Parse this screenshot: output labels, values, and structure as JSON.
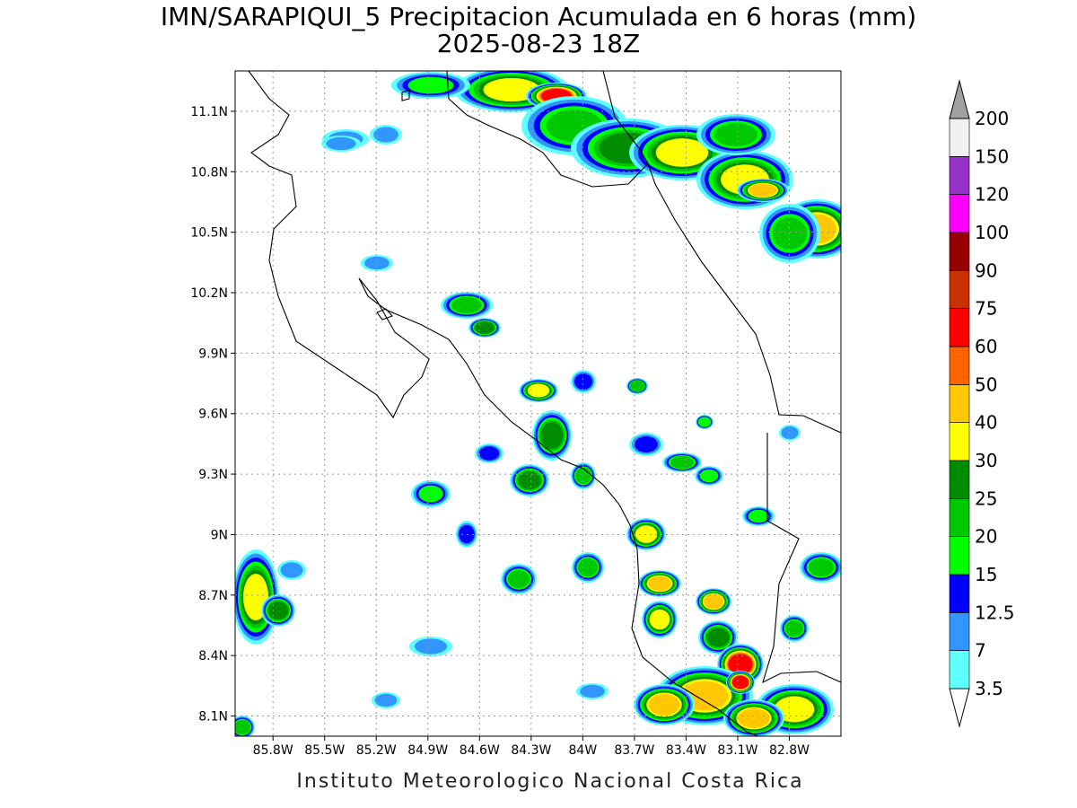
{
  "map": {
    "title": "IMN/SARAPIQUI_5 Precipitacion Acumulada en 6 horas (mm)",
    "subtitle": "2025-08-23 18Z",
    "footer": "Instituto Meteorologico Nacional Costa Rica",
    "xlim": [
      -86.02,
      -82.5
    ],
    "ylim": [
      8.0,
      11.3
    ],
    "xticks": [
      {
        "value": -85.8,
        "label": "85.8W"
      },
      {
        "value": -85.5,
        "label": "85.5W"
      },
      {
        "value": -85.2,
        "label": "85.2W"
      },
      {
        "value": -84.9,
        "label": "84.9W"
      },
      {
        "value": -84.6,
        "label": "84.6W"
      },
      {
        "value": -84.3,
        "label": "84.3W"
      },
      {
        "value": -84.0,
        "label": "84W"
      },
      {
        "value": -83.7,
        "label": "83.7W"
      },
      {
        "value": -83.4,
        "label": "83.4W"
      },
      {
        "value": -83.1,
        "label": "83.1W"
      },
      {
        "value": -82.8,
        "label": "82.8W"
      }
    ],
    "yticks": [
      {
        "value": 8.1,
        "label": "8.1N"
      },
      {
        "value": 8.4,
        "label": "8.4N"
      },
      {
        "value": 8.7,
        "label": "8.7N"
      },
      {
        "value": 9.0,
        "label": "9N"
      },
      {
        "value": 9.3,
        "label": "9.3N"
      },
      {
        "value": 9.6,
        "label": "9.6N"
      },
      {
        "value": 9.9,
        "label": "9.9N"
      },
      {
        "value": 10.2,
        "label": "10.2N"
      },
      {
        "value": 10.5,
        "label": "10.5N"
      },
      {
        "value": 10.8,
        "label": "10.8N"
      },
      {
        "value": 11.1,
        "label": "11.1N"
      }
    ],
    "grid": true,
    "colorbar": {
      "levels": [
        3.5,
        7,
        12.5,
        15,
        20,
        25,
        30,
        40,
        50,
        60,
        75,
        90,
        100,
        120,
        150,
        200
      ],
      "colors": [
        "#60ffff",
        "#3296ff",
        "#0000ff",
        "#00ff00",
        "#00c800",
        "#008c00",
        "#ffff00",
        "#ffc800",
        "#ff6400",
        "#ff0000",
        "#c83200",
        "#960000",
        "#ff00ff",
        "#9632c8",
        "#f0f0f0"
      ],
      "under_color": "#ffffff",
      "over_color": "#a0a0a0"
    }
  }
}
